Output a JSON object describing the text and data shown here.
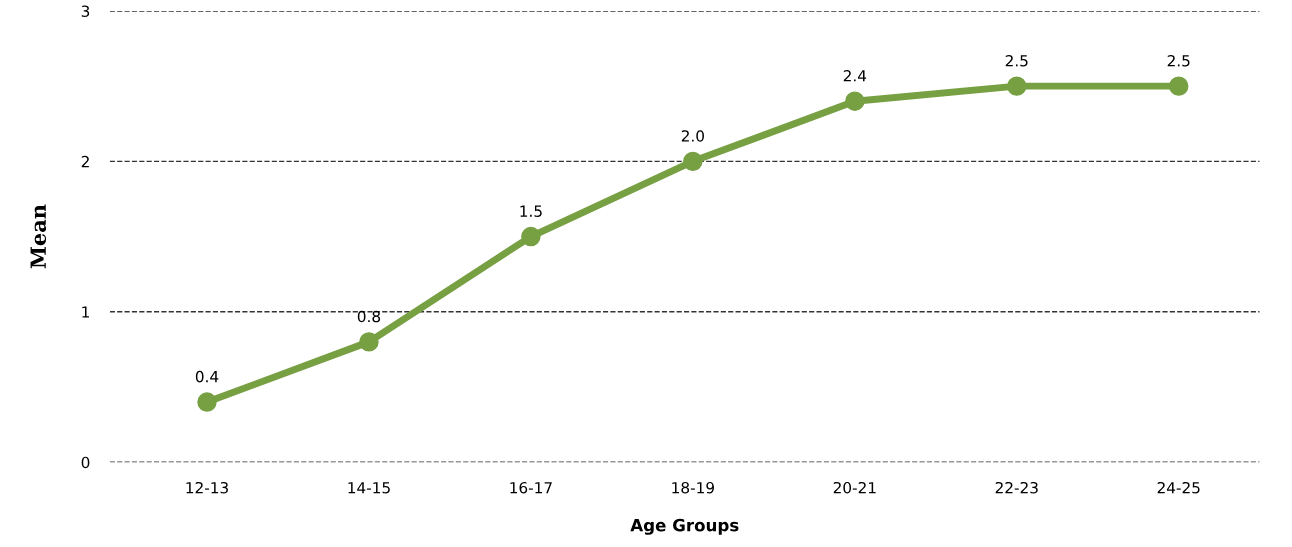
{
  "chart_data": {
    "type": "line",
    "xlabel": "Age Groups",
    "ylabel": "Mean",
    "categories": [
      "12-13",
      "14-15",
      "16-17",
      "18-19",
      "20-21",
      "22-23",
      "24-25"
    ],
    "series": [
      {
        "color": "#77a043",
        "values": [
          0.4,
          0.8,
          1.5,
          2.0,
          2.4,
          2.5,
          2.5
        ],
        "value_labels": [
          "0.4",
          "0.8",
          "1.5",
          "2.0",
          "2.4",
          "2.5",
          "2.5"
        ]
      }
    ],
    "ylim": [
      0,
      3
    ],
    "yticks": [
      0,
      1,
      2,
      3
    ],
    "grid": "y",
    "marker": "circle",
    "line_style": "solid"
  }
}
